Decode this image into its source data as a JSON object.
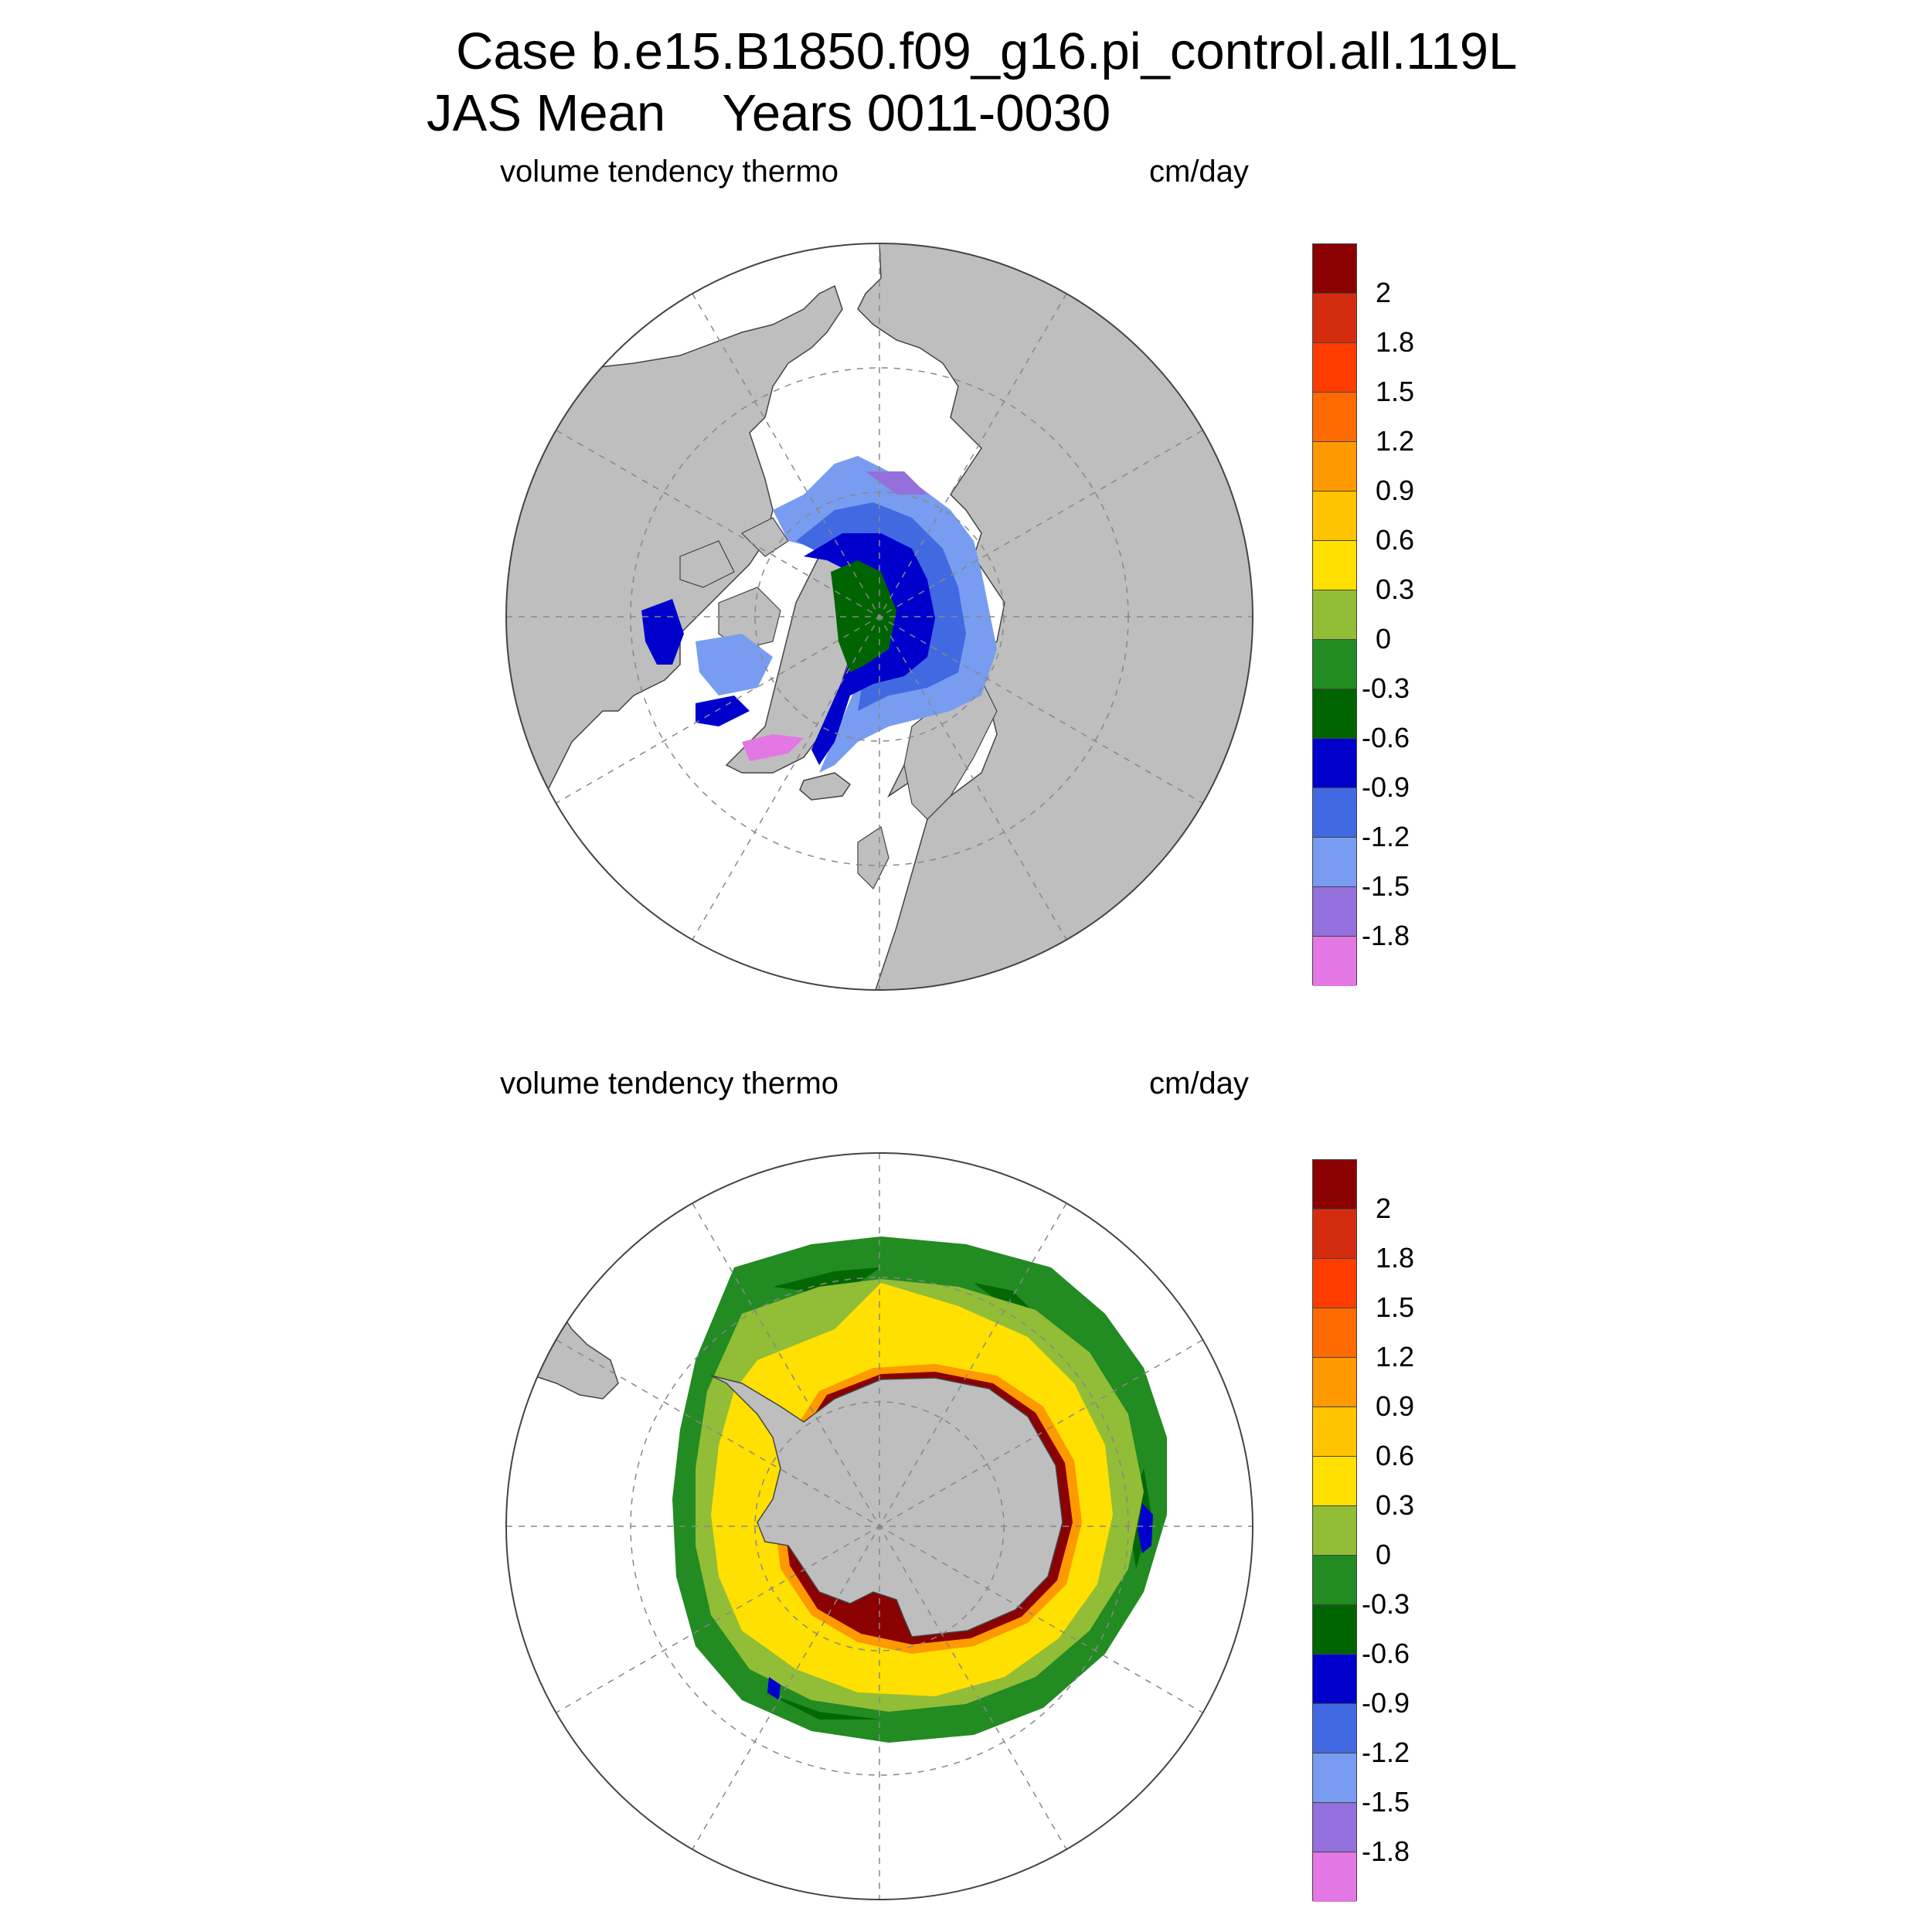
{
  "title": {
    "line1": "Case b.e15.B1850.f09_g16.pi_control.all.119L",
    "line2": "JAS Mean    Years 0011-0030"
  },
  "panels": [
    {
      "id": "arctic",
      "hemisphere": "north",
      "variable_label": "volume tendency thermo",
      "units_label": "cm/day",
      "land_color": "#bebebe",
      "ocean_color": "#ffffff"
    },
    {
      "id": "antarctic",
      "hemisphere": "south",
      "variable_label": "volume tendency thermo",
      "units_label": "cm/day",
      "land_color": "#bebebe",
      "ocean_color": "#ffffff"
    }
  ],
  "colorbar": {
    "colors": [
      "#8b0000",
      "#d42c0e",
      "#ff3c00",
      "#ff6a00",
      "#ff9900",
      "#ffc300",
      "#ffe000",
      "#92bd36",
      "#228b22",
      "#006400",
      "#0000cd",
      "#4169e1",
      "#789cf0",
      "#9370db",
      "#e377e3"
    ],
    "labels": [
      "2",
      "1.8",
      "1.5",
      "1.2",
      "0.9",
      "0.6",
      "0.3",
      "0",
      "-0.3",
      "-0.6",
      "-0.9",
      "-1.2",
      "-1.5",
      "-1.8"
    ]
  }
}
